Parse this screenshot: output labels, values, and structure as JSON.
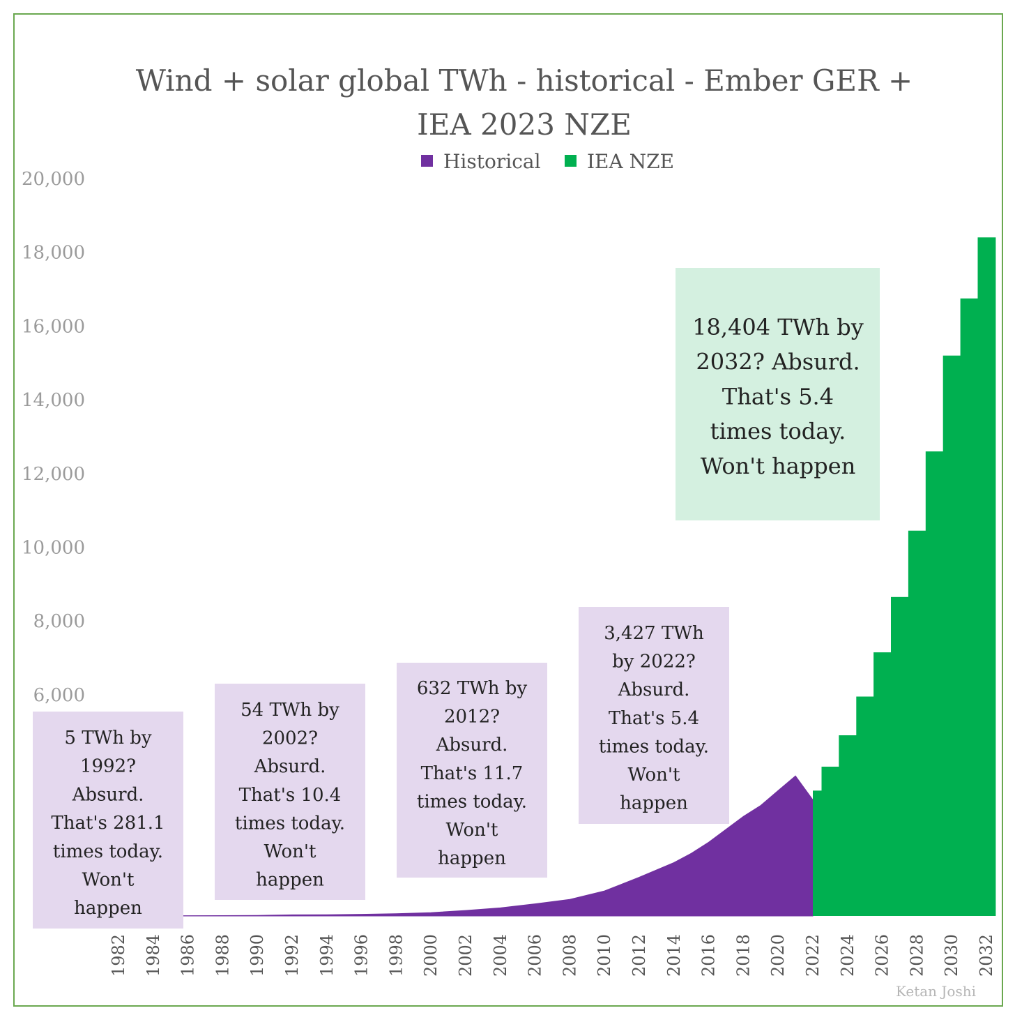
{
  "chart_data": {
    "type": "area",
    "title": "Wind + solar global TWh - historical  - Ember GER + IEA 2023 NZE",
    "title_lines": [
      "Wind + solar global TWh - historical  - Ember GER +",
      "IEA 2023 NZE"
    ],
    "xlabel": "",
    "ylabel": "",
    "ylim": [
      0,
      20000
    ],
    "xlim": [
      1982,
      2032
    ],
    "y_ticks": [
      6000,
      8000,
      10000,
      12000,
      14000,
      16000,
      18000,
      20000
    ],
    "y_tick_labels": [
      "6,000",
      "8,000",
      "10,000",
      "12,000",
      "14,000",
      "16,000",
      "18,000",
      "20,000"
    ],
    "x_ticks": [
      1982,
      1984,
      1986,
      1988,
      1990,
      1992,
      1994,
      1996,
      1998,
      2000,
      2002,
      2004,
      2006,
      2008,
      2010,
      2012,
      2014,
      2016,
      2018,
      2020,
      2022,
      2024,
      2026,
      2028,
      2030,
      2032
    ],
    "legend_position": "top-center",
    "grid": false,
    "series": [
      {
        "name": "Historical",
        "color": "#7030a0",
        "style": "area",
        "x": [
          1982,
          1984,
          1986,
          1988,
          1990,
          1992,
          1994,
          1996,
          1998,
          2000,
          2002,
          2004,
          2006,
          2008,
          2010,
          2012,
          2014,
          2015,
          2016,
          2017,
          2018,
          2019,
          2020,
          2021,
          2022
        ],
        "values": [
          5,
          6,
          8,
          10,
          15,
          30,
          35,
          45,
          60,
          90,
          150,
          220,
          330,
          450,
          680,
          1050,
          1450,
          1700,
          2000,
          2350,
          2700,
          3000,
          3400,
          3800,
          3150
        ]
      },
      {
        "name": "IEA NZE",
        "color": "#00b050",
        "style": "step",
        "x": [
          2022,
          2023,
          2024,
          2025,
          2026,
          2027,
          2028,
          2029,
          2030,
          2031,
          2032
        ],
        "values": [
          3400,
          4050,
          4900,
          5950,
          7150,
          8650,
          10450,
          12600,
          15200,
          16750,
          18404
        ]
      }
    ],
    "annotations": [
      {
        "lines": [
          "5 TWh by",
          "1992?",
          "Absurd.",
          "That's 281.1",
          "times today.",
          "Won't",
          "happen"
        ]
      },
      {
        "lines": [
          "54 TWh by",
          "2002?",
          "Absurd.",
          "That's 10.4",
          "times today.",
          "Won't",
          "happen"
        ]
      },
      {
        "lines": [
          "632 TWh by",
          "2012?",
          "Absurd.",
          "That's 11.7",
          "times today.",
          "Won't",
          "happen"
        ]
      },
      {
        "lines": [
          "3,427 TWh",
          "by 2022?",
          "Absurd.",
          "That's 5.4",
          "times today.",
          "Won't",
          "happen"
        ]
      },
      {
        "lines": [
          "18,404 TWh by",
          "2032? Absurd.",
          "That's 5.4",
          "times today.",
          "Won't happen"
        ]
      }
    ],
    "annotation_colors": {
      "small": "#e4d8ee",
      "big": "#d4f0e0"
    },
    "credit": "Ketan Joshi"
  }
}
